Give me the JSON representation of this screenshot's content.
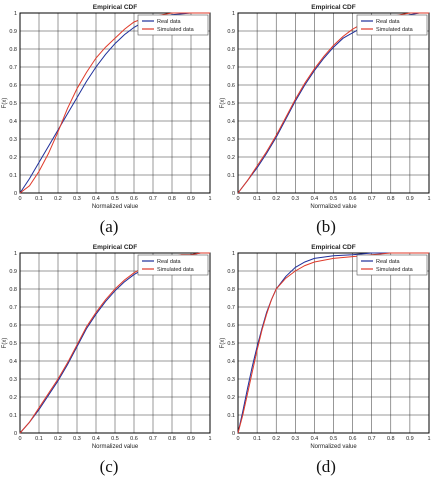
{
  "colors": {
    "real": "#1f2f9a",
    "simulated": "#e03a2a",
    "grid": "#333333",
    "axis": "#000000"
  },
  "chart_data": [
    {
      "type": "line",
      "caption": "(a)",
      "title": "Empirical CDF",
      "xlabel": "Normalized value",
      "ylabel": "F(x)",
      "xlim": [
        0,
        1
      ],
      "ylim": [
        0,
        1
      ],
      "xticks": [
        "0",
        "0.1",
        "0.2",
        "0.3",
        "0.4",
        "0.5",
        "0.6",
        "0.7",
        "0.8",
        "0.9",
        "1"
      ],
      "yticks": [
        "0",
        "0.1",
        "0.2",
        "0.3",
        "0.4",
        "0.5",
        "0.6",
        "0.7",
        "0.8",
        "0.9",
        "1"
      ],
      "grid": true,
      "legend_position": "top-right",
      "series": [
        {
          "name": "Real data",
          "color": "#1f2f9a",
          "x": [
            0,
            0.05,
            0.1,
            0.15,
            0.2,
            0.25,
            0.3,
            0.35,
            0.4,
            0.45,
            0.5,
            0.55,
            0.6,
            0.65,
            0.7,
            0.75,
            0.8,
            0.9,
            1
          ],
          "y": [
            0,
            0.08,
            0.17,
            0.26,
            0.35,
            0.44,
            0.53,
            0.62,
            0.7,
            0.77,
            0.83,
            0.88,
            0.92,
            0.95,
            0.97,
            0.98,
            0.99,
            1,
            1
          ]
        },
        {
          "name": "Simulated data",
          "color": "#e03a2a",
          "x": [
            0,
            0.05,
            0.1,
            0.15,
            0.2,
            0.25,
            0.3,
            0.35,
            0.4,
            0.45,
            0.5,
            0.55,
            0.6,
            0.65,
            0.7,
            0.75,
            0.8,
            0.9,
            1
          ],
          "y": [
            0,
            0.04,
            0.12,
            0.22,
            0.34,
            0.47,
            0.58,
            0.67,
            0.75,
            0.81,
            0.86,
            0.91,
            0.95,
            0.97,
            0.98,
            0.99,
            1,
            1,
            1
          ]
        }
      ]
    },
    {
      "type": "line",
      "caption": "(b)",
      "title": "Empirical CDF",
      "xlabel": "Normalized value",
      "ylabel": "F(x)",
      "xlim": [
        0,
        1
      ],
      "ylim": [
        0,
        1
      ],
      "xticks": [
        "0",
        "0.1",
        "0.2",
        "0.3",
        "0.4",
        "0.5",
        "0.6",
        "0.7",
        "0.8",
        "0.9",
        "1"
      ],
      "yticks": [
        "0",
        "0.1",
        "0.2",
        "0.3",
        "0.4",
        "0.5",
        "0.6",
        "0.7",
        "0.8",
        "0.9",
        "1"
      ],
      "grid": true,
      "legend_position": "top-right",
      "series": [
        {
          "name": "Real data",
          "color": "#1f2f9a",
          "x": [
            0,
            0.05,
            0.1,
            0.15,
            0.2,
            0.25,
            0.3,
            0.35,
            0.4,
            0.45,
            0.5,
            0.55,
            0.6,
            0.65,
            0.7,
            0.75,
            0.8,
            0.85,
            0.9,
            0.95,
            1
          ],
          "y": [
            0,
            0.07,
            0.14,
            0.22,
            0.31,
            0.41,
            0.51,
            0.6,
            0.68,
            0.75,
            0.81,
            0.86,
            0.89,
            0.92,
            0.94,
            0.96,
            0.97,
            0.98,
            0.99,
            1,
            1
          ]
        },
        {
          "name": "Simulated data",
          "color": "#e03a2a",
          "x": [
            0,
            0.05,
            0.1,
            0.15,
            0.2,
            0.25,
            0.3,
            0.35,
            0.4,
            0.45,
            0.5,
            0.55,
            0.6,
            0.65,
            0.7,
            0.75,
            0.8,
            0.85,
            0.9,
            0.95,
            1
          ],
          "y": [
            0,
            0.07,
            0.15,
            0.23,
            0.32,
            0.42,
            0.52,
            0.61,
            0.69,
            0.76,
            0.82,
            0.87,
            0.91,
            0.94,
            0.96,
            0.97,
            0.98,
            0.99,
            1,
            1,
            1
          ]
        }
      ]
    },
    {
      "type": "line",
      "caption": "(c)",
      "title": "Empirical CDF",
      "xlabel": "Normalized value",
      "ylabel": "F(x)",
      "xlim": [
        0,
        1
      ],
      "ylim": [
        0,
        1
      ],
      "xticks": [
        "0",
        "0.1",
        "0.2",
        "0.3",
        "0.4",
        "0.5",
        "0.6",
        "0.7",
        "0.8",
        "0.9",
        "1"
      ],
      "yticks": [
        "0",
        "0.1",
        "0.2",
        "0.3",
        "0.4",
        "0.5",
        "0.6",
        "0.7",
        "0.8",
        "0.9",
        "1"
      ],
      "grid": true,
      "legend_position": "top-right",
      "series": [
        {
          "name": "Real data",
          "color": "#1f2f9a",
          "x": [
            0,
            0.05,
            0.1,
            0.15,
            0.2,
            0.25,
            0.3,
            0.35,
            0.4,
            0.45,
            0.5,
            0.55,
            0.6,
            0.65,
            0.7,
            0.75,
            0.8,
            0.85,
            0.9,
            0.95,
            1
          ],
          "y": [
            0,
            0.06,
            0.13,
            0.21,
            0.29,
            0.38,
            0.48,
            0.58,
            0.66,
            0.73,
            0.79,
            0.84,
            0.88,
            0.91,
            0.94,
            0.96,
            0.97,
            0.98,
            0.99,
            1,
            1
          ]
        },
        {
          "name": "Simulated data",
          "color": "#e03a2a",
          "x": [
            0,
            0.05,
            0.1,
            0.15,
            0.2,
            0.25,
            0.3,
            0.35,
            0.4,
            0.45,
            0.5,
            0.55,
            0.6,
            0.65,
            0.7,
            0.75,
            0.8,
            0.85,
            0.9,
            0.95,
            1
          ],
          "y": [
            0,
            0.06,
            0.14,
            0.22,
            0.3,
            0.39,
            0.49,
            0.59,
            0.67,
            0.74,
            0.8,
            0.85,
            0.89,
            0.92,
            0.95,
            0.97,
            0.98,
            0.99,
            0.99,
            1,
            1
          ]
        }
      ]
    },
    {
      "type": "line",
      "caption": "(d)",
      "title": "Empirical CDF",
      "xlabel": "Normalized value",
      "ylabel": "F(x)",
      "xlim": [
        0,
        1
      ],
      "ylim": [
        0,
        1
      ],
      "xticks": [
        "0",
        "0.1",
        "0.2",
        "0.3",
        "0.4",
        "0.5",
        "0.6",
        "0.7",
        "0.8",
        "0.9",
        "1"
      ],
      "yticks": [
        "0",
        "0.1",
        "0.2",
        "0.3",
        "0.4",
        "0.5",
        "0.6",
        "0.7",
        "0.8",
        "0.9",
        "1"
      ],
      "grid": true,
      "legend_position": "top-right",
      "series": [
        {
          "name": "Real data",
          "color": "#1f2f9a",
          "x": [
            0,
            0.025,
            0.05,
            0.075,
            0.1,
            0.125,
            0.15,
            0.175,
            0.2,
            0.25,
            0.3,
            0.35,
            0.4,
            0.5,
            0.6,
            0.7,
            0.8,
            1
          ],
          "y": [
            0,
            0.12,
            0.25,
            0.37,
            0.48,
            0.58,
            0.67,
            0.74,
            0.8,
            0.87,
            0.92,
            0.95,
            0.97,
            0.985,
            0.99,
            1,
            1,
            1
          ]
        },
        {
          "name": "Simulated data",
          "color": "#e03a2a",
          "x": [
            0,
            0.025,
            0.05,
            0.075,
            0.1,
            0.125,
            0.15,
            0.175,
            0.2,
            0.25,
            0.3,
            0.35,
            0.4,
            0.5,
            0.6,
            0.7,
            0.8,
            1
          ],
          "y": [
            0,
            0.1,
            0.22,
            0.34,
            0.46,
            0.57,
            0.66,
            0.74,
            0.8,
            0.86,
            0.9,
            0.93,
            0.95,
            0.97,
            0.98,
            0.99,
            1,
            1
          ]
        }
      ]
    }
  ]
}
